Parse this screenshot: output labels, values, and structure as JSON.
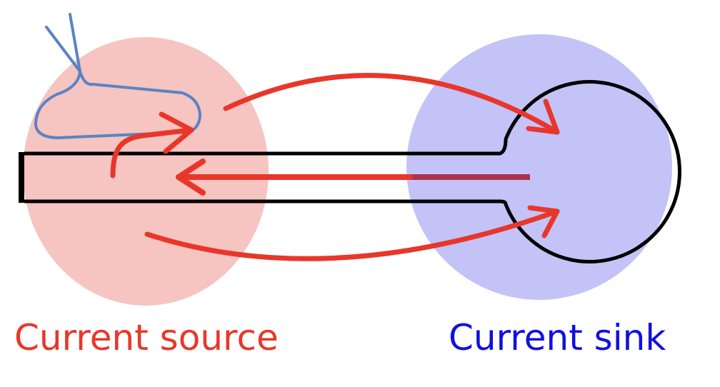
{
  "labels": {
    "source": "Current source",
    "sink": "Current sink"
  },
  "colors": {
    "source_region": "#f6c4c1",
    "sink_region": "#c3c3f8",
    "current_arrows": "#e8372a",
    "return_arrow": "#a9334f",
    "neuron_outline": "#000000",
    "synapse_contact": "#5b83c4",
    "source_text": "#e8372a",
    "sink_text": "#1010e0"
  }
}
